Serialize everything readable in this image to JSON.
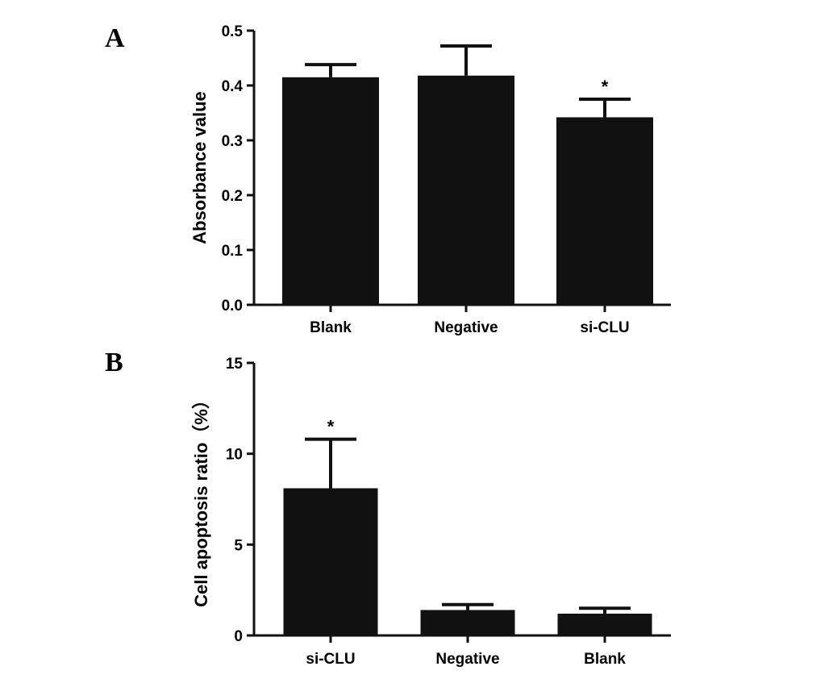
{
  "chart_data": [
    {
      "panel": "A",
      "type": "bar",
      "categories": [
        "Blank",
        "Negative",
        "si-CLU"
      ],
      "values": [
        0.415,
        0.418,
        0.342
      ],
      "error_upper": [
        0.438,
        0.472,
        0.375
      ],
      "significance": [
        "",
        "",
        "*"
      ],
      "title": "",
      "xlabel": "",
      "ylabel": "Absorbance value",
      "ylim": [
        0,
        0.5
      ],
      "yticks": [
        0.0,
        0.1,
        0.2,
        0.3,
        0.4,
        0.5
      ],
      "ytick_labels": [
        "0.0",
        "0.1",
        "0.2",
        "0.3",
        "0.4",
        "0.5"
      ],
      "bar_color": "#111111",
      "grid": false
    },
    {
      "panel": "B",
      "type": "bar",
      "categories": [
        "si-CLU",
        "Negative",
        "Blank"
      ],
      "values": [
        8.1,
        1.4,
        1.2
      ],
      "error_upper": [
        10.8,
        1.7,
        1.5
      ],
      "significance": [
        "*",
        "",
        ""
      ],
      "title": "",
      "xlabel": "",
      "ylabel": "Cell apoptosis ratio（%）",
      "ylim": [
        0,
        15
      ],
      "yticks": [
        0,
        5,
        10,
        15
      ],
      "ytick_labels": [
        "0",
        "5",
        "10",
        "15"
      ],
      "bar_color": "#111111",
      "grid": false
    }
  ]
}
